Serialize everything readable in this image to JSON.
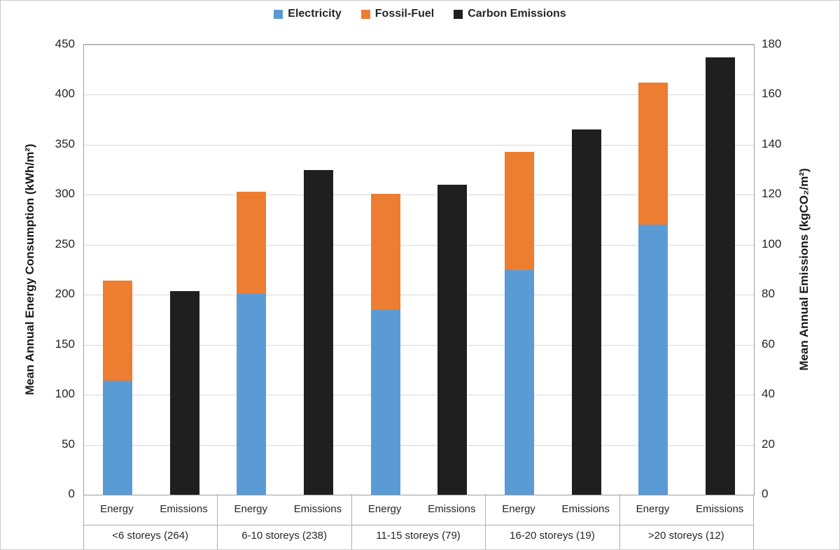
{
  "chart_data": {
    "type": "bar",
    "title": "",
    "grid": true,
    "legend_position": "top",
    "legend": [
      {
        "id": "electricity",
        "label": "Electricity",
        "color": "#5B9BD5"
      },
      {
        "id": "fossil-fuel",
        "label": "Fossil-Fuel",
        "color": "#ED7D31"
      },
      {
        "id": "carbon-emissions",
        "label": "Carbon Emissions",
        "color": "#1F1F1F"
      }
    ],
    "left_axis": {
      "title": "Mean Annual Energy Consumption (kWh/m²)",
      "min": 0,
      "max": 450,
      "step": 50
    },
    "right_axis": {
      "title": "Mean Annual Emissions (kgCO₂/m²)",
      "min": 0,
      "max": 180,
      "step": 20
    },
    "sub_labels": [
      "Energy",
      "Emissions"
    ],
    "groups": [
      {
        "label": "<6 storeys (264)",
        "electricity": 114,
        "fossil_fuel": 100,
        "emissions": 81.5
      },
      {
        "label": "6-10 storeys (238)",
        "electricity": 201,
        "fossil_fuel": 102,
        "emissions": 130
      },
      {
        "label": "11-15 storeys (79)",
        "electricity": 185,
        "fossil_fuel": 116,
        "emissions": 124
      },
      {
        "label": "16-20 storeys (19)",
        "electricity": 225,
        "fossil_fuel": 118,
        "emissions": 146
      },
      {
        "label": ">20 storeys (12)",
        "electricity": 270,
        "fossil_fuel": 142,
        "emissions": 175
      }
    ],
    "colors": {
      "electricity": "#5B9BD5",
      "fossil_fuel": "#ED7D31",
      "emissions": "#1F1F1F",
      "gridline": "#D9D9D9",
      "axis_line": "#9E9E9E",
      "text": "#262626"
    }
  }
}
